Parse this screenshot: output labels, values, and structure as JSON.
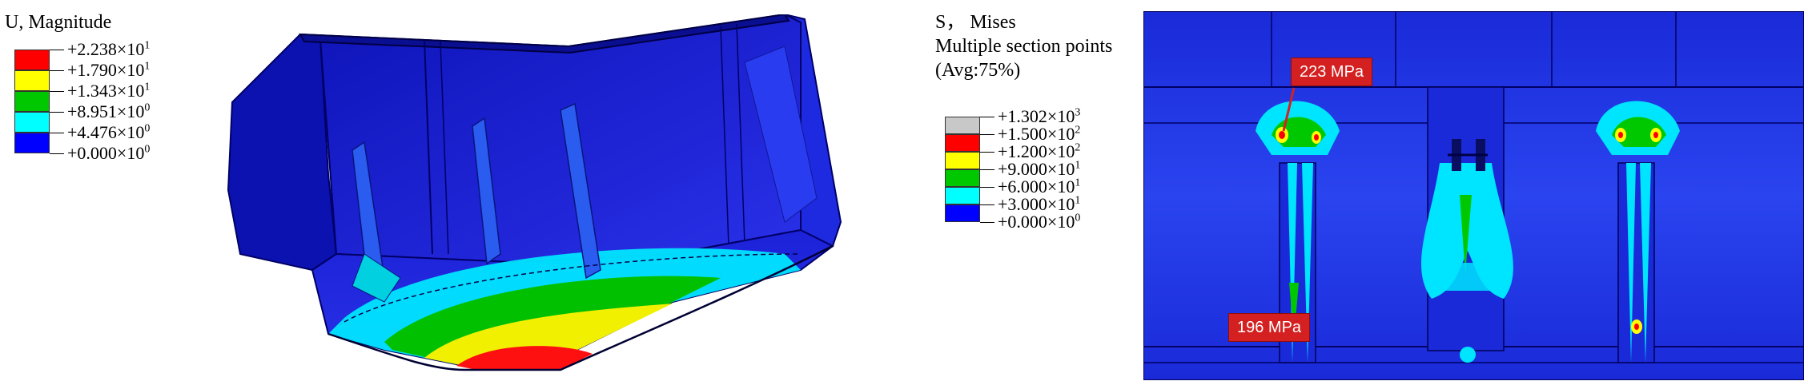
{
  "left_panel": {
    "legend": {
      "title": "U, Magnitude",
      "items": [
        {
          "color": "#ff0000",
          "mantissa": "+2.238×10",
          "exp": "1"
        },
        {
          "color": "#ffff00",
          "mantissa": "+1.790×10",
          "exp": "1"
        },
        {
          "color": "#00c800",
          "mantissa": "+1.343×10",
          "exp": "1"
        },
        {
          "color": "#00ffff",
          "mantissa": "+8.951×10",
          "exp": "0"
        },
        {
          "color": "#0000ff",
          "mantissa": "+4.476×10",
          "exp": "0"
        }
      ],
      "last_label": {
        "mantissa": "+0.000×10",
        "exp": "0"
      }
    }
  },
  "right_panel": {
    "legend": {
      "title_line1": "S， Mises",
      "title_line2": "Multiple section points",
      "title_line3": "(Avg:75%)",
      "items": [
        {
          "color": "#c8c8c8",
          "mantissa": "+1.302×10",
          "exp": "3"
        },
        {
          "color": "#ff0000",
          "mantissa": "+1.500×10",
          "exp": "2"
        },
        {
          "color": "#ffff00",
          "mantissa": "+1.200×10",
          "exp": "2"
        },
        {
          "color": "#00c800",
          "mantissa": "+9.000×10",
          "exp": "1"
        },
        {
          "color": "#00ffff",
          "mantissa": "+6.000×10",
          "exp": "1"
        },
        {
          "color": "#0000ff",
          "mantissa": "+3.000×10",
          "exp": "1"
        }
      ],
      "last_label": {
        "mantissa": "+0.000×10",
        "exp": "0"
      }
    },
    "callouts": {
      "top": "223 MPa",
      "bottom": "196 MPa"
    }
  },
  "colors": {
    "bucket_blue": "#1a1fd6",
    "bucket_dark": "#0a0ea0",
    "plate_blue": "#1f3fe0",
    "callout_red": "#d42020"
  }
}
